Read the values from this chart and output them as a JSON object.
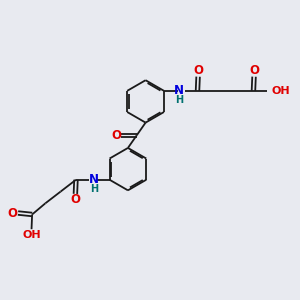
{
  "background_color": "#e8eaf0",
  "bond_color": "#1a1a1a",
  "oxygen_color": "#e00000",
  "nitrogen_color": "#0000dd",
  "hydrogen_color": "#007070",
  "font_size": 7.5,
  "bond_width": 1.3,
  "figsize": [
    3.0,
    3.0
  ],
  "dpi": 100,
  "xlim": [
    0,
    10
  ],
  "ylim": [
    0,
    10
  ]
}
